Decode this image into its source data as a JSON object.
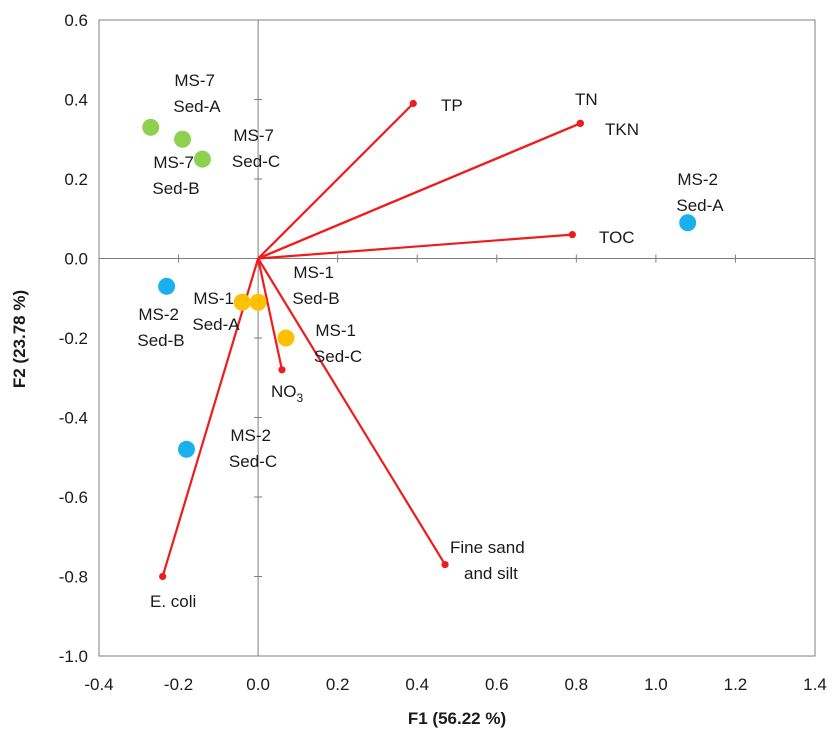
{
  "chart_data": {
    "type": "scatter",
    "title": "",
    "xlabel": "F1 (56.22 %)",
    "ylabel": "F2 (23.78 %)",
    "xlim": [
      -0.4,
      1.4
    ],
    "ylim": [
      -1.0,
      0.6
    ],
    "x_ticks": [
      "-0.4",
      "-0.2",
      "0.0",
      "0.2",
      "0.4",
      "0.6",
      "0.8",
      "1.0",
      "1.2",
      "1.4"
    ],
    "y_ticks": [
      "0.6",
      "0.4",
      "0.2",
      "0.0",
      "-0.2",
      "-0.4",
      "-0.6",
      "-0.8",
      "-1.0"
    ],
    "grid": false,
    "colors": {
      "vector": "#ee1c1c",
      "MS-7": "#8fd14f",
      "MS-2": "#1ab0f0",
      "MS-1": "#ffc000"
    },
    "observations": [
      {
        "group": "MS-7",
        "label": [
          "MS-7",
          "Sed-A"
        ],
        "x": -0.27,
        "y": 0.33
      },
      {
        "group": "MS-7",
        "label": [
          "MS-7",
          "Sed-B"
        ],
        "x": -0.19,
        "y": 0.3
      },
      {
        "group": "MS-7",
        "label": [
          "MS-7",
          "Sed-C"
        ],
        "x": -0.14,
        "y": 0.25
      },
      {
        "group": "MS-2",
        "label": [
          "MS-2",
          "Sed-A"
        ],
        "x": 1.08,
        "y": 0.09
      },
      {
        "group": "MS-2",
        "label": [
          "MS-2",
          "Sed-B"
        ],
        "x": -0.23,
        "y": -0.07
      },
      {
        "group": "MS-2",
        "label": [
          "MS-2",
          "Sed-C"
        ],
        "x": -0.18,
        "y": -0.48
      },
      {
        "group": "MS-1",
        "label": [
          "MS-1",
          "Sed-A"
        ],
        "x": -0.04,
        "y": -0.11
      },
      {
        "group": "MS-1",
        "label": [
          "MS-1",
          "Sed-B"
        ],
        "x": 0.0,
        "y": -0.11
      },
      {
        "group": "MS-1",
        "label": [
          "MS-1",
          "Sed-C"
        ],
        "x": 0.07,
        "y": -0.2
      }
    ],
    "variables": [
      {
        "name": "TP",
        "x": 0.39,
        "y": 0.39
      },
      {
        "name": "TN",
        "x": 0.81,
        "y": 0.34
      },
      {
        "name": "TKN",
        "x": 0.81,
        "y": 0.34
      },
      {
        "name": "TOC",
        "x": 0.79,
        "y": 0.06
      },
      {
        "name": "NO3",
        "x": 0.06,
        "y": -0.28
      },
      {
        "name": "Fine sand and silt",
        "x": 0.47,
        "y": -0.77
      },
      {
        "name": "E. coli",
        "x": -0.24,
        "y": -0.8
      }
    ]
  }
}
